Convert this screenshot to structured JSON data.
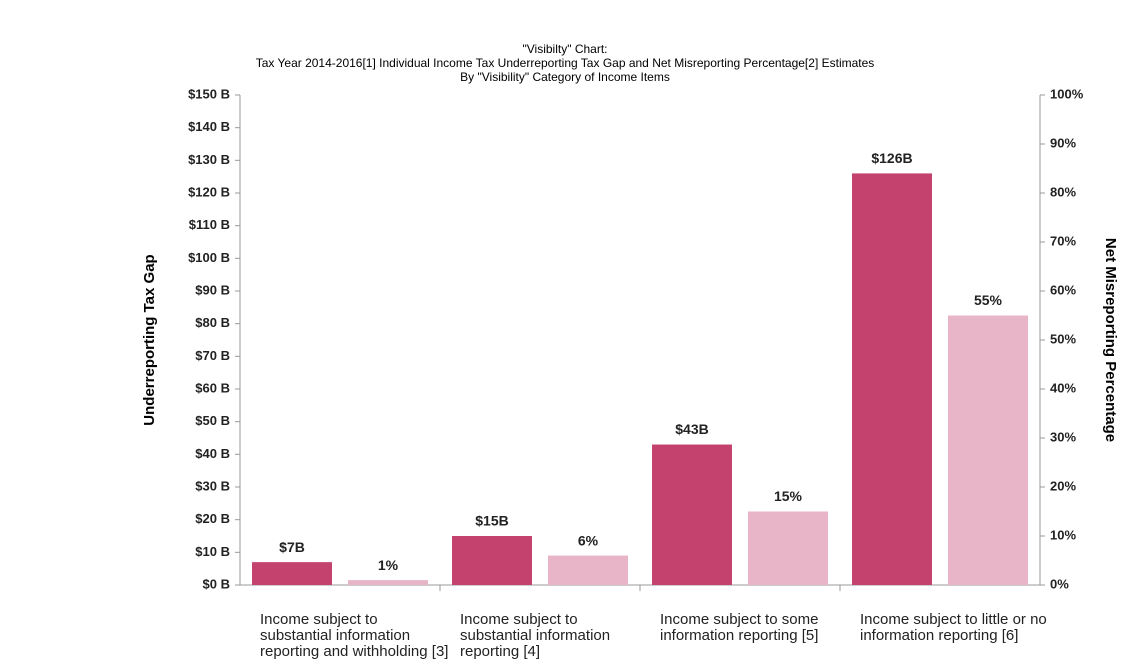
{
  "chart_data": {
    "type": "bar",
    "title": "\"Visibilty\" Chart:",
    "subtitle": "Tax Year 2014-2016[1] Individual Income Tax Underreporting Tax Gap and Net Misreporting Percentage[2] Estimates",
    "subtitle2": "By \"Visibility\" Category of Income Items",
    "y_label": "Underreporting  Tax Gap",
    "y2_label": "Net Misreporting Percentage",
    "categories": [
      "Income subject to substantial information reporting and withholding [3]",
      "Income subject to substantial information reporting [4]",
      "Income subject to some information reporting [5]",
      "Income subject to little or no information reporting [6]"
    ],
    "series": [
      {
        "color": "#c4426e",
        "values": [
          7,
          15,
          43,
          126
        ],
        "value_labels": [
          "$7B",
          "$15B",
          "$43B",
          "$126B"
        ]
      },
      {
        "color": "#e8b4c8",
        "axis": "y2",
        "values": [
          1,
          6,
          15,
          55
        ],
        "value_labels": [
          "1%",
          "6%",
          "15%",
          "55%"
        ]
      }
    ],
    "ylim": [
      0,
      150
    ],
    "yticks": [
      {
        "value": 0,
        "label": "$0 B"
      },
      {
        "value": 10,
        "label": "$10 B"
      },
      {
        "value": 20,
        "label": "$20 B"
      },
      {
        "value": 30,
        "label": "$30 B"
      },
      {
        "value": 40,
        "label": "$40 B"
      },
      {
        "value": 50,
        "label": "$50 B"
      },
      {
        "value": 60,
        "label": "$60 B"
      },
      {
        "value": 70,
        "label": "$70 B"
      },
      {
        "value": 80,
        "label": "$80 B"
      },
      {
        "value": 90,
        "label": "$90 B"
      },
      {
        "value": 100,
        "label": "$100 B"
      },
      {
        "value": 110,
        "label": "$110 B"
      },
      {
        "value": 120,
        "label": "$120 B"
      },
      {
        "value": 130,
        "label": "$130 B"
      },
      {
        "value": 140,
        "label": "$140 B"
      },
      {
        "value": 150,
        "label": "$150 B"
      }
    ],
    "y2lim": [
      0,
      100
    ],
    "y2ticks": [
      {
        "value": 0,
        "label": "0%"
      },
      {
        "value": 10,
        "label": "10%"
      },
      {
        "value": 20,
        "label": "20%"
      },
      {
        "value": 30,
        "label": "30%"
      },
      {
        "value": 40,
        "label": "40%"
      },
      {
        "value": 50,
        "label": "50%"
      },
      {
        "value": 60,
        "label": "60%"
      },
      {
        "value": 70,
        "label": "70%"
      },
      {
        "value": 80,
        "label": "80%"
      },
      {
        "value": 90,
        "label": "90%"
      },
      {
        "value": 100,
        "label": "100%"
      }
    ]
  }
}
